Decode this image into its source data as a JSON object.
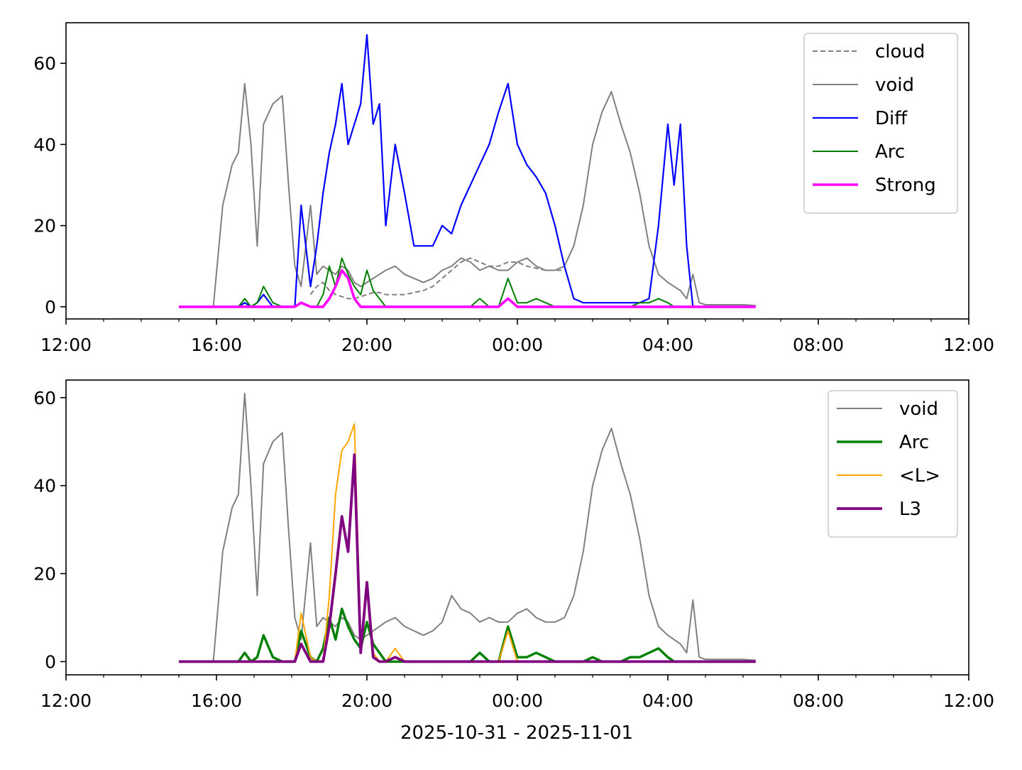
{
  "figure": {
    "xlabel": "2025-10-31 - 2025-11-01"
  },
  "chart_data": [
    {
      "type": "line",
      "panel": "top",
      "x_axis": {
        "type": "time",
        "range": [
          "2025-10-31 12:00",
          "2025-11-01 12:00"
        ],
        "ticks": [
          "12:00",
          "16:00",
          "20:00",
          "00:00",
          "04:00",
          "08:00",
          "12:00"
        ]
      },
      "ylim": [
        -3,
        70
      ],
      "yticks": [
        0,
        20,
        40,
        60
      ],
      "legend": {
        "position": "top-right"
      },
      "x": [
        "15:00",
        "15:30",
        "15:55",
        "16:10",
        "16:25",
        "16:35",
        "16:45",
        "16:55",
        "17:05",
        "17:15",
        "17:30",
        "17:45",
        "17:55",
        "18:05",
        "18:15",
        "18:30",
        "18:40",
        "18:50",
        "19:00",
        "19:10",
        "19:20",
        "19:30",
        "19:40",
        "19:50",
        "20:00",
        "20:10",
        "20:20",
        "20:30",
        "20:45",
        "21:00",
        "21:15",
        "21:30",
        "21:45",
        "22:00",
        "22:15",
        "22:30",
        "22:45",
        "23:00",
        "23:15",
        "23:30",
        "23:45",
        "00:00",
        "00:15",
        "00:30",
        "00:45",
        "01:00",
        "01:15",
        "01:30",
        "01:45",
        "02:00",
        "02:15",
        "02:30",
        "02:45",
        "03:00",
        "03:15",
        "03:30",
        "03:45",
        "04:00",
        "04:10",
        "04:20",
        "04:30",
        "04:40",
        "04:50",
        "05:00",
        "05:30",
        "06:00",
        "06:20"
      ],
      "series": [
        {
          "name": "cloud",
          "color": "#808080",
          "style": "dashed",
          "values": [
            null,
            null,
            null,
            null,
            null,
            null,
            null,
            null,
            null,
            null,
            null,
            null,
            null,
            null,
            null,
            3,
            5,
            6,
            4,
            3,
            2.5,
            2,
            2,
            2.5,
            3,
            3.5,
            3.5,
            3,
            3,
            3,
            3.5,
            4,
            5,
            7,
            9,
            11,
            12,
            11,
            10,
            10,
            11,
            11,
            10,
            9.5,
            9,
            9,
            9,
            null,
            null,
            null,
            null,
            null,
            null,
            null,
            null,
            null,
            null,
            null,
            null,
            null,
            null,
            null,
            null,
            null,
            null,
            null,
            null
          ]
        },
        {
          "name": "void",
          "color": "#808080",
          "style": "solid",
          "values": [
            null,
            null,
            0,
            25,
            35,
            38,
            55,
            40,
            15,
            45,
            50,
            52,
            30,
            10,
            5,
            25,
            8,
            10,
            9,
            8,
            10,
            9,
            6,
            5,
            6,
            7,
            8,
            9,
            10,
            8,
            7,
            6,
            7,
            9,
            10,
            12,
            11,
            9,
            10,
            9,
            9,
            11,
            12,
            10,
            9,
            9,
            10,
            15,
            25,
            40,
            48,
            53,
            45,
            38,
            28,
            15,
            8,
            6,
            5,
            4,
            2,
            8,
            1,
            0.5,
            0.5,
            0.5,
            0.3
          ]
        },
        {
          "name": "Diff",
          "color": "#0000ff",
          "style": "solid",
          "values": [
            0,
            0,
            0,
            0,
            0,
            0,
            1,
            0,
            1,
            3,
            0,
            0,
            0,
            0,
            25,
            5,
            15,
            28,
            38,
            45,
            55,
            40,
            45,
            50,
            67,
            45,
            50,
            20,
            40,
            28,
            15,
            15,
            15,
            20,
            18,
            25,
            30,
            35,
            40,
            48,
            55,
            40,
            35,
            32,
            28,
            20,
            10,
            2,
            1,
            1,
            1,
            1,
            1,
            1,
            1,
            2,
            20,
            45,
            30,
            45,
            15,
            0,
            0,
            0,
            0,
            0,
            0
          ]
        },
        {
          "name": "Arc",
          "color": "#008000",
          "style": "solid",
          "values": [
            0,
            0,
            0,
            0,
            0,
            0,
            2,
            0,
            1,
            5,
            1,
            0,
            0,
            0,
            1,
            0,
            0,
            3,
            10,
            5,
            12,
            8,
            5,
            3,
            9,
            4,
            2,
            0,
            0,
            0,
            0,
            0,
            0,
            0,
            0,
            0,
            0,
            2,
            0,
            0,
            7,
            1,
            1,
            2,
            1,
            0,
            0,
            0,
            0,
            0,
            0,
            0,
            0,
            0,
            1,
            1,
            2,
            1,
            0,
            0,
            0,
            0,
            0,
            0,
            0,
            0,
            0
          ]
        },
        {
          "name": "Strong",
          "color": "#ff00ff",
          "style": "solid",
          "values": [
            0,
            0,
            0,
            0,
            0,
            0,
            0,
            0,
            0,
            0,
            0,
            0,
            0,
            0,
            1,
            0,
            0,
            0,
            2,
            5,
            9,
            7,
            2,
            0,
            0,
            0,
            0,
            0,
            0,
            0,
            0,
            0,
            0,
            0,
            0,
            0,
            0,
            0,
            0,
            0,
            2,
            0,
            0,
            0,
            0,
            0,
            0,
            0,
            0,
            0,
            0,
            0,
            0,
            0,
            0,
            0,
            0,
            0,
            0,
            0,
            0,
            0,
            0,
            0,
            0,
            0,
            0
          ]
        }
      ]
    },
    {
      "type": "line",
      "panel": "bottom",
      "x_axis": {
        "type": "time",
        "range": [
          "2025-10-31 12:00",
          "2025-11-01 12:00"
        ],
        "ticks": [
          "12:00",
          "16:00",
          "20:00",
          "00:00",
          "04:00",
          "08:00",
          "12:00"
        ]
      },
      "xlabel": "2025-10-31 - 2025-11-01",
      "ylim": [
        -3,
        64
      ],
      "yticks": [
        0,
        20,
        40,
        60
      ],
      "legend": {
        "position": "top-right"
      },
      "x": [
        "15:00",
        "15:30",
        "15:55",
        "16:10",
        "16:25",
        "16:35",
        "16:45",
        "16:55",
        "17:05",
        "17:15",
        "17:30",
        "17:45",
        "17:55",
        "18:05",
        "18:15",
        "18:30",
        "18:40",
        "18:50",
        "19:00",
        "19:10",
        "19:20",
        "19:30",
        "19:40",
        "19:50",
        "20:00",
        "20:10",
        "20:20",
        "20:30",
        "20:45",
        "21:00",
        "21:15",
        "21:30",
        "21:45",
        "22:00",
        "22:15",
        "22:30",
        "22:45",
        "23:00",
        "23:15",
        "23:30",
        "23:45",
        "00:00",
        "00:15",
        "00:30",
        "00:45",
        "01:00",
        "01:15",
        "01:30",
        "01:45",
        "02:00",
        "02:15",
        "02:30",
        "02:45",
        "03:00",
        "03:15",
        "03:30",
        "03:45",
        "04:00",
        "04:10",
        "04:20",
        "04:30",
        "04:40",
        "04:50",
        "05:00",
        "05:30",
        "06:00",
        "06:20"
      ],
      "series": [
        {
          "name": "void",
          "color": "#808080",
          "style": "solid",
          "values": [
            null,
            null,
            0,
            25,
            35,
            38,
            61,
            40,
            15,
            45,
            50,
            52,
            30,
            10,
            5,
            27,
            8,
            10,
            9,
            8,
            10,
            9,
            6,
            5,
            6,
            7,
            8,
            9,
            10,
            8,
            7,
            6,
            7,
            9,
            15,
            12,
            11,
            9,
            10,
            9,
            9,
            11,
            12,
            10,
            9,
            9,
            10,
            15,
            25,
            40,
            48,
            53,
            45,
            38,
            28,
            15,
            8,
            6,
            5,
            4,
            2,
            14,
            1,
            0.5,
            0.5,
            0.5,
            0.3
          ]
        },
        {
          "name": "Arc",
          "color": "#008000",
          "style": "solid",
          "values": [
            0,
            0,
            0,
            0,
            0,
            0,
            2,
            0,
            1,
            6,
            1,
            0,
            0,
            0,
            7,
            1,
            0,
            3,
            10,
            5,
            12,
            8,
            5,
            3,
            9,
            4,
            2,
            0,
            0,
            0,
            0,
            0,
            0,
            0,
            0,
            0,
            0,
            2,
            0,
            0,
            8,
            1,
            1,
            2,
            1,
            0,
            0,
            0,
            0,
            1,
            0,
            0,
            0,
            1,
            1,
            2,
            3,
            1,
            0,
            0,
            0,
            0,
            0,
            0,
            0,
            0,
            0
          ]
        },
        {
          "name": "<L>",
          "color": "#ffa500",
          "style": "solid",
          "values": [
            0,
            0,
            0,
            0,
            0,
            0,
            0,
            0,
            0,
            0,
            0,
            0,
            0,
            0,
            11,
            1,
            0,
            0,
            15,
            38,
            48,
            50,
            54,
            4,
            18,
            2,
            0,
            0,
            3,
            0,
            0,
            0,
            0,
            0,
            0,
            0,
            0,
            0,
            0,
            0,
            7,
            0,
            0,
            0,
            0,
            0,
            0,
            0,
            0,
            0,
            0,
            0,
            0,
            0,
            0,
            0,
            0,
            0,
            0,
            0,
            0,
            0,
            0,
            0,
            0,
            0,
            0
          ]
        },
        {
          "name": "L3",
          "color": "#800080",
          "style": "solid",
          "values": [
            0,
            0,
            0,
            0,
            0,
            0,
            0,
            0,
            0,
            0,
            0,
            0,
            0,
            0,
            4,
            0,
            0,
            0,
            8,
            20,
            33,
            25,
            47,
            2,
            18,
            1,
            0,
            0,
            1,
            0,
            0,
            0,
            0,
            0,
            0,
            0,
            0,
            0,
            0,
            0,
            0,
            0,
            0,
            0,
            0,
            0,
            0,
            0,
            0,
            0,
            0,
            0,
            0,
            0,
            0,
            0,
            0,
            0,
            0,
            0,
            0,
            0,
            0,
            0,
            0,
            0,
            0
          ]
        }
      ]
    }
  ]
}
